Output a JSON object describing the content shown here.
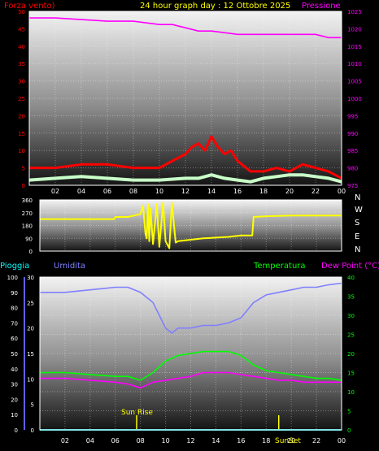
{
  "chart_data": [
    {
      "type": "line",
      "title": "24 hour graph day : 12 Ottobre 2025",
      "left_axis_label": "Forza vento)",
      "right_axis_label": "Pressione",
      "x_ticks": [
        "02",
        "04",
        "06",
        "08",
        "10",
        "12",
        "14",
        "16",
        "18",
        "20",
        "22",
        "00"
      ],
      "left_ticks": [
        "0",
        "5",
        "10",
        "15",
        "20",
        "25",
        "30",
        "35",
        "40",
        "45",
        "50"
      ],
      "right_ticks": [
        "975",
        "980",
        "985",
        "990",
        "995",
        "1000",
        "1005",
        "1010",
        "1015",
        "1020",
        "1025"
      ],
      "x_range_hours": [
        0,
        24
      ],
      "wind_ylim": [
        0,
        50
      ],
      "pressure_ylim": [
        975,
        1028
      ],
      "series": [
        {
          "color": "#ff00ff",
          "axis": "right",
          "x": [
            0,
            2,
            4,
            6,
            8,
            10,
            11,
            12,
            13,
            14,
            15,
            16,
            17,
            18,
            20,
            22,
            23,
            24
          ],
          "values": [
            1026,
            1026,
            1025.5,
            1025,
            1025,
            1024,
            1024,
            1023,
            1022,
            1022,
            1021.5,
            1021,
            1021,
            1021,
            1021,
            1021,
            1020,
            1020
          ]
        },
        {
          "color": "#ff0000",
          "axis": "left",
          "x": [
            0,
            2,
            4,
            6,
            8,
            10,
            11,
            12,
            12.5,
            13,
            13.5,
            14,
            14.5,
            15,
            15.5,
            16,
            17,
            18,
            19,
            20,
            21,
            22,
            23,
            24
          ],
          "values": [
            5,
            5,
            6,
            6,
            5,
            5,
            7,
            9,
            11,
            12,
            10,
            14,
            11,
            9,
            10,
            7,
            4,
            4,
            5,
            4,
            6,
            5,
            4,
            2
          ]
        },
        {
          "color": "#c8ffc8",
          "axis": "left",
          "x": [
            0,
            2,
            4,
            6,
            8,
            10,
            12,
            13,
            14,
            15,
            16,
            17,
            18,
            19,
            20,
            21,
            22,
            23,
            24
          ],
          "values": [
            1.5,
            2,
            2.5,
            2,
            1.5,
            1.5,
            2,
            2,
            3,
            2,
            1.5,
            1,
            2,
            2.5,
            3,
            3,
            2.5,
            2,
            1
          ]
        }
      ]
    },
    {
      "type": "line",
      "left_ticks": [
        "360",
        "270",
        "180",
        "90",
        "0"
      ],
      "right_ticks": [
        "N",
        "W",
        "S",
        "E",
        "N"
      ],
      "ylim": [
        0,
        360
      ],
      "series": [
        {
          "color": "#ffff00",
          "x": [
            0,
            2,
            4,
            5.9,
            6,
            7,
            8,
            8.2,
            8.4,
            8.5,
            8.6,
            8.7,
            8.8,
            9,
            9.3,
            9.5,
            9.8,
            10,
            10.3,
            10.5,
            10.8,
            11,
            12,
            13,
            14,
            15,
            16,
            16.9,
            17,
            18,
            20,
            22,
            24
          ],
          "values": [
            225,
            225,
            225,
            225,
            240,
            240,
            260,
            320,
            120,
            90,
            330,
            70,
            300,
            50,
            330,
            30,
            340,
            70,
            20,
            340,
            60,
            70,
            80,
            90,
            95,
            100,
            110,
            110,
            240,
            245,
            250,
            250,
            250
          ]
        }
      ]
    },
    {
      "type": "line",
      "labels": [
        "Pioggia",
        "Umidita",
        "Temperatura",
        "Dew Point (°C)"
      ],
      "x_ticks": [
        "02",
        "04",
        "06",
        "08",
        "10",
        "12",
        "14",
        "16",
        "18",
        "20",
        "22",
        "00"
      ],
      "rain_ticks": [
        "0",
        "10",
        "20",
        "30",
        "40",
        "50",
        "60",
        "70",
        "80",
        "90",
        "100"
      ],
      "humidity_ticks": [
        "0",
        "5",
        "10",
        "15",
        "20",
        "25",
        "30"
      ],
      "temp_ticks": [
        "0",
        "5",
        "10",
        "15",
        "20",
        "25",
        "30",
        "35",
        "40"
      ],
      "humidity_ylim": [
        0,
        30
      ],
      "temp_ylim": [
        0,
        40
      ],
      "annotations": [
        "Sun Rise",
        "SunSet"
      ],
      "sun_rise_hour": 7.7,
      "sun_set_hour": 19.0,
      "series": [
        {
          "color": "#8080ff",
          "axis": "humidity",
          "x": [
            0,
            2,
            4,
            6,
            7,
            8,
            9,
            10,
            10.5,
            11,
            12,
            13,
            14,
            15,
            16,
            17,
            18,
            19,
            20,
            21,
            22,
            23,
            24
          ],
          "values": [
            27,
            27,
            27.5,
            28,
            28,
            27,
            25,
            20,
            19,
            20,
            20,
            20.5,
            20.5,
            21,
            22,
            25,
            26.5,
            27,
            27.5,
            28,
            28,
            28.5,
            28.8
          ]
        },
        {
          "color": "#00ff00",
          "axis": "temp",
          "x": [
            0,
            2,
            4,
            6,
            7,
            8,
            9,
            10,
            11,
            12,
            13,
            14,
            15,
            16,
            17,
            18,
            19,
            20,
            21,
            22,
            23,
            24
          ],
          "values": [
            15,
            15,
            14.5,
            14,
            14,
            13,
            15,
            18,
            19.5,
            20,
            20.5,
            20.5,
            20.5,
            19.5,
            17,
            15.5,
            15,
            14.5,
            14,
            13.5,
            13.5,
            13
          ]
        },
        {
          "color": "#ff00ff",
          "axis": "temp",
          "x": [
            0,
            2,
            4,
            6,
            7,
            8,
            9,
            10,
            11,
            12,
            13,
            14,
            15,
            16,
            17,
            18,
            19,
            20,
            21,
            22,
            23,
            24
          ],
          "values": [
            13.5,
            13.5,
            13,
            12.5,
            12,
            11,
            12.5,
            13,
            13.5,
            14,
            15,
            15,
            15,
            14.5,
            14,
            13.5,
            13,
            13,
            12.5,
            12.5,
            12.5,
            12.5
          ]
        },
        {
          "color": "#00c8c8",
          "axis": "rain",
          "x": [
            0,
            24
          ],
          "values": [
            0,
            0
          ]
        }
      ]
    }
  ]
}
